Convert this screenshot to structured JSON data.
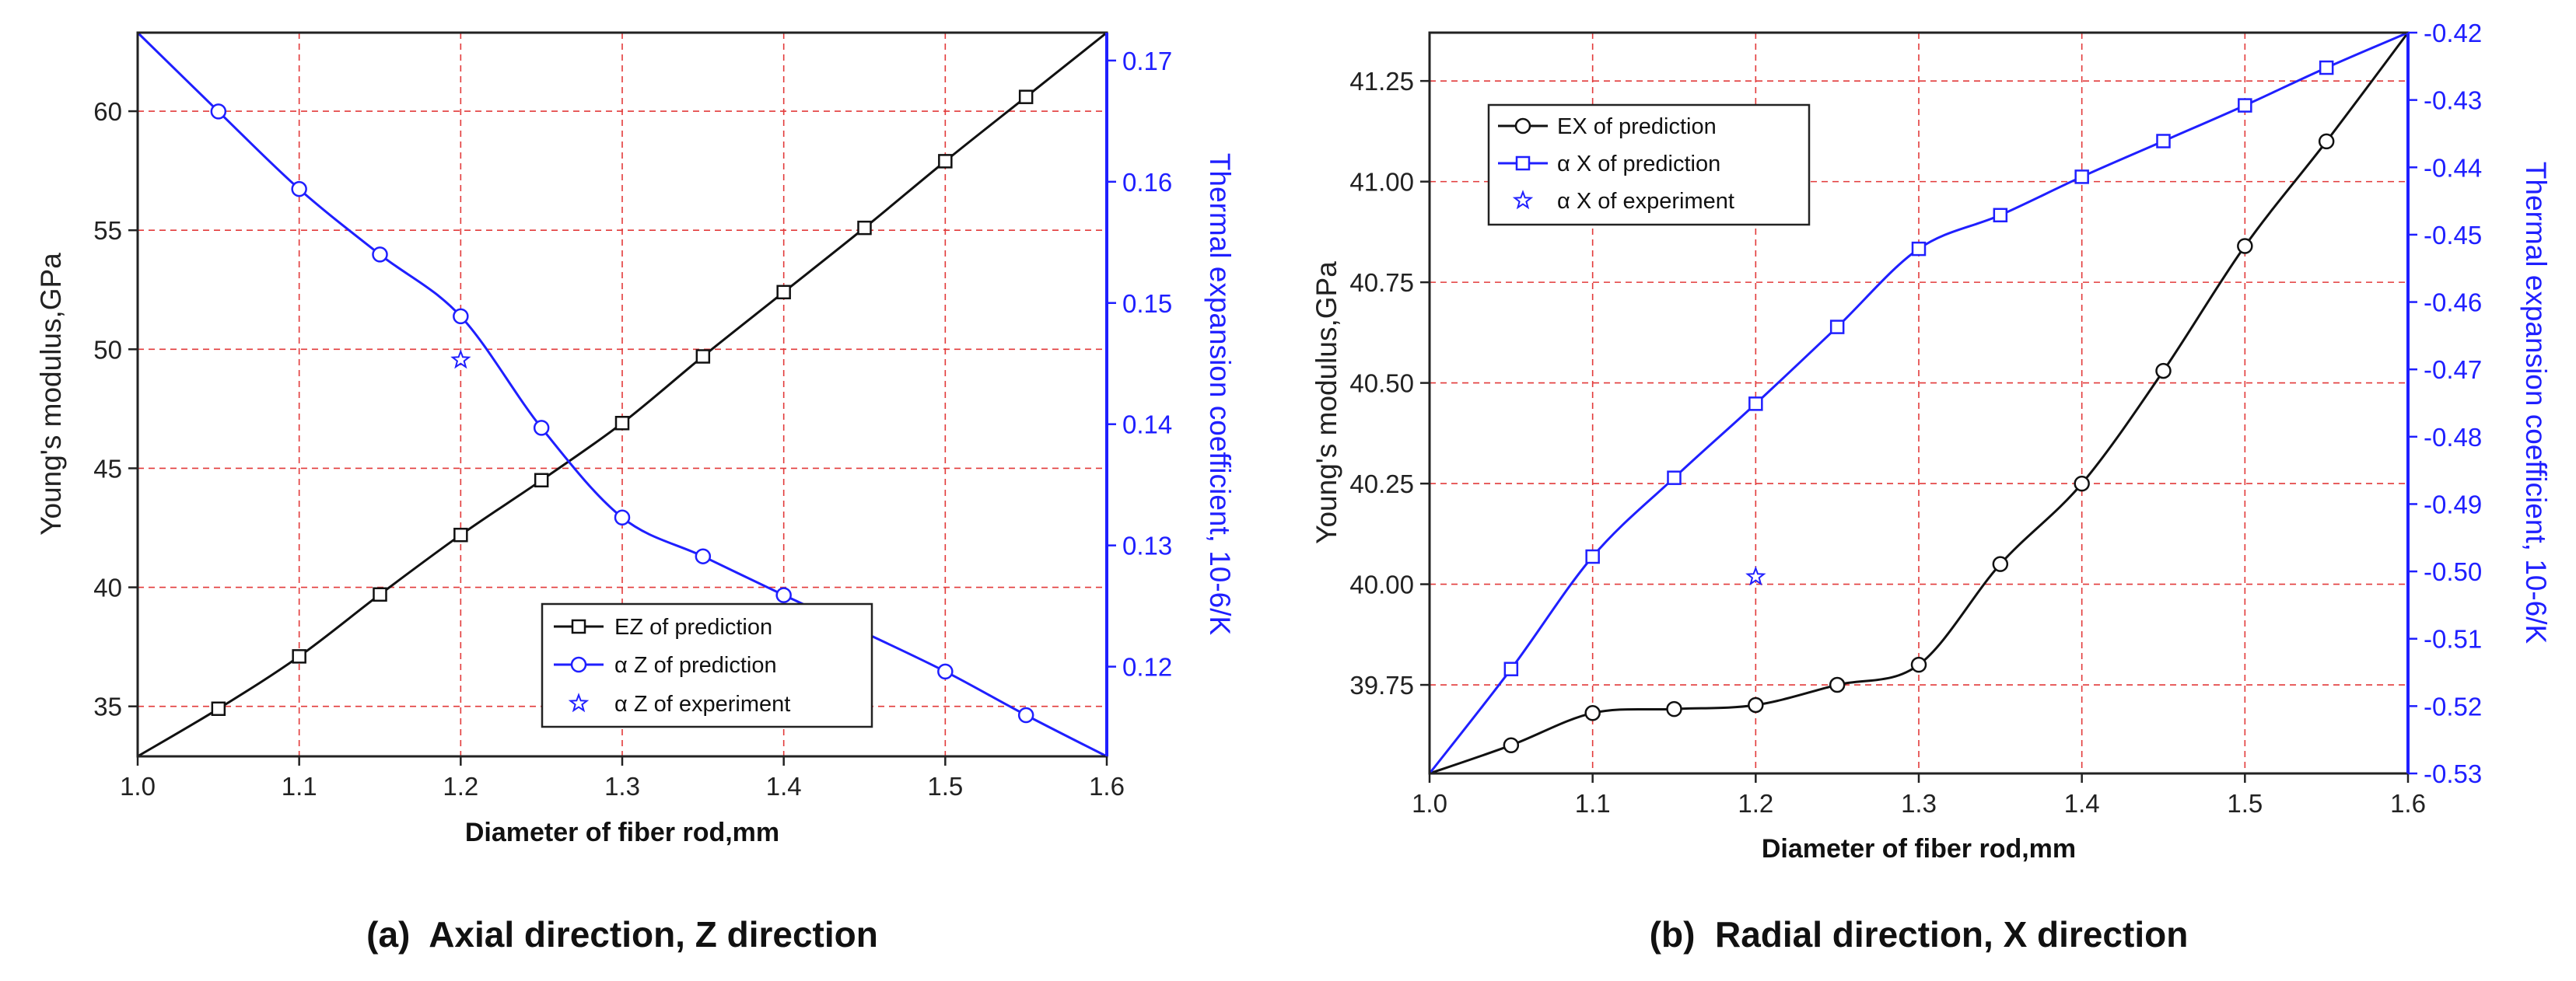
{
  "chart_data": [
    {
      "id": "a",
      "type": "line",
      "caption": "(a)  Axial direction, Z direction",
      "xlabel": "Diameter of fiber rod,mm",
      "ylabel_left": "Young's modulus,GPa",
      "ylabel_right": "Thermal expansion coefficient, 10-6/K",
      "xlim": [
        1.0,
        1.6
      ],
      "ylim_left": [
        32.9,
        63.3
      ],
      "ylim_right": [
        0.1126,
        0.1723
      ],
      "x_ticks": [
        "1.0",
        "1.1",
        "1.2",
        "1.3",
        "1.4",
        "1.5",
        "1.6"
      ],
      "x_tick_values": [
        1.0,
        1.1,
        1.2,
        1.3,
        1.4,
        1.5,
        1.6
      ],
      "y_left_ticks": [
        "35",
        "40",
        "45",
        "50",
        "55",
        "60"
      ],
      "y_left_tick_values": [
        35,
        40,
        45,
        50,
        55,
        60
      ],
      "y_right_ticks": [
        "0.12",
        "0.13",
        "0.14",
        "0.15",
        "0.16",
        "0.17"
      ],
      "y_right_tick_values": [
        0.12,
        0.13,
        0.14,
        0.15,
        0.16,
        0.17
      ],
      "grid": true,
      "legend_position": "bottom-right",
      "series": [
        {
          "name": "EZ of prediction",
          "axis": "left",
          "color": "#111111",
          "marker": "square",
          "x": [
            1.0,
            1.05,
            1.1,
            1.15,
            1.2,
            1.25,
            1.3,
            1.35,
            1.4,
            1.45,
            1.5,
            1.55,
            1.6
          ],
          "y": [
            32.9,
            34.9,
            37.1,
            39.7,
            42.2,
            44.5,
            46.9,
            49.7,
            52.4,
            55.1,
            57.9,
            60.6,
            63.3
          ],
          "markers_at": [
            1,
            2,
            3,
            4,
            5,
            6,
            7,
            8,
            9,
            10,
            11
          ]
        },
        {
          "name": "α Z of prediction",
          "axis": "right",
          "color": "#1f1fff",
          "marker": "circle",
          "x": [
            1.0,
            1.05,
            1.1,
            1.15,
            1.2,
            1.25,
            1.3,
            1.35,
            1.4,
            1.45,
            1.5,
            1.55,
            1.6
          ],
          "y": [
            0.1723,
            0.1658,
            0.1594,
            0.154,
            0.1489,
            0.1397,
            0.1323,
            0.1291,
            0.1259,
            0.1228,
            0.1196,
            0.116,
            0.1126
          ],
          "markers_at": [
            1,
            2,
            3,
            4,
            5,
            6,
            7,
            8,
            9,
            10,
            11
          ]
        },
        {
          "name": "α Z of experiment",
          "axis": "right",
          "color": "#1f1fff",
          "marker": "star",
          "scatter": true,
          "x": [
            1.2
          ],
          "y": [
            0.1453
          ]
        }
      ]
    },
    {
      "id": "b",
      "type": "line",
      "caption": "(b)  Radial direction, X direction",
      "xlabel": "Diameter of fiber rod,mm",
      "ylabel_left": "Young's modulus,GPa",
      "ylabel_right": "Thermal expansion coefficient, 10-6/K",
      "xlim": [
        1.0,
        1.6
      ],
      "ylim_left": [
        39.53,
        41.37
      ],
      "ylim_right": [
        -0.53,
        -0.42
      ],
      "x_ticks": [
        "1.0",
        "1.1",
        "1.2",
        "1.3",
        "1.4",
        "1.5",
        "1.6"
      ],
      "x_tick_values": [
        1.0,
        1.1,
        1.2,
        1.3,
        1.4,
        1.5,
        1.6
      ],
      "y_left_ticks": [
        "39.75",
        "40.00",
        "40.25",
        "40.50",
        "40.75",
        "41.00",
        "41.25"
      ],
      "y_left_tick_values": [
        39.75,
        40.0,
        40.25,
        40.5,
        40.75,
        41.0,
        41.25
      ],
      "y_right_ticks": [
        "-0.53",
        "-0.52",
        "-0.51",
        "-0.50",
        "-0.49",
        "-0.48",
        "-0.47",
        "-0.46",
        "-0.45",
        "-0.44",
        "-0.43",
        "-0.42"
      ],
      "y_right_tick_values": [
        -0.53,
        -0.52,
        -0.51,
        -0.5,
        -0.49,
        -0.48,
        -0.47,
        -0.46,
        -0.45,
        -0.44,
        -0.43,
        -0.42
      ],
      "grid": true,
      "legend_position": "top-left",
      "series": [
        {
          "name": "EX of prediction",
          "axis": "left",
          "color": "#111111",
          "marker": "circle",
          "x": [
            1.0,
            1.05,
            1.1,
            1.15,
            1.2,
            1.25,
            1.3,
            1.35,
            1.4,
            1.45,
            1.5,
            1.55,
            1.6
          ],
          "y": [
            39.53,
            39.6,
            39.68,
            39.69,
            39.7,
            39.75,
            39.8,
            40.05,
            40.25,
            40.53,
            40.84,
            41.1,
            41.37
          ],
          "markers_at": [
            1,
            2,
            3,
            4,
            5,
            6,
            7,
            8,
            9,
            10,
            11
          ]
        },
        {
          "name": "α X of prediction",
          "axis": "right",
          "color": "#1f1fff",
          "marker": "square",
          "x": [
            1.0,
            1.05,
            1.1,
            1.15,
            1.2,
            1.25,
            1.3,
            1.35,
            1.4,
            1.45,
            1.5,
            1.55,
            1.6
          ],
          "y": [
            -0.53,
            -0.5145,
            -0.4978,
            -0.4861,
            -0.4751,
            -0.4637,
            -0.4521,
            -0.4471,
            -0.4414,
            -0.4361,
            -0.4308,
            -0.4252,
            -0.42
          ],
          "markers_at": [
            1,
            2,
            3,
            4,
            5,
            6,
            7,
            8,
            9,
            10,
            11
          ]
        },
        {
          "name": "α X of experiment",
          "axis": "right",
          "color": "#1f1fff",
          "marker": "star",
          "scatter": true,
          "x": [
            1.2
          ],
          "y": [
            -0.5008
          ]
        }
      ]
    }
  ]
}
